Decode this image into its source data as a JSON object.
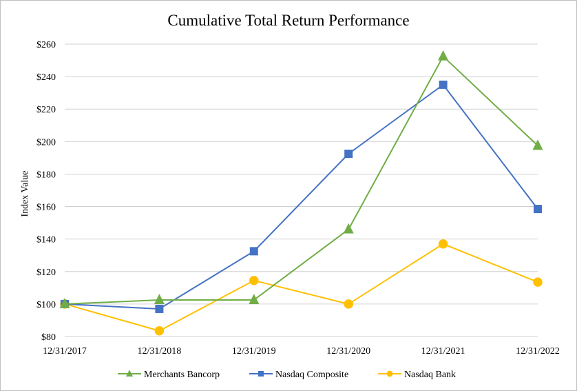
{
  "chart_data": {
    "type": "line",
    "title": "Cumulative Total Return Performance",
    "xlabel": "",
    "ylabel": "Index Value",
    "categories": [
      "12/31/2017",
      "12/31/2018",
      "12/31/2019",
      "12/31/2020",
      "12/31/2021",
      "12/31/2022"
    ],
    "ylim": [
      80,
      260
    ],
    "ytick_step": 20,
    "ytick_prefix": "$",
    "grid": true,
    "legend_position": "bottom",
    "series": [
      {
        "name": "Merchants Bancorp",
        "marker": "triangle",
        "color": "#70ad47",
        "values": [
          100,
          102.5,
          102.5,
          146,
          252.5,
          197.5
        ]
      },
      {
        "name": "Nasdaq Composite",
        "marker": "square",
        "color": "#4472c4",
        "values": [
          100,
          97,
          132.5,
          192.5,
          235,
          158.5
        ]
      },
      {
        "name": "Nasdaq Bank",
        "marker": "circle",
        "color": "#ffc000",
        "values": [
          100,
          83.5,
          114.5,
          100,
          137,
          113.5
        ]
      }
    ]
  }
}
